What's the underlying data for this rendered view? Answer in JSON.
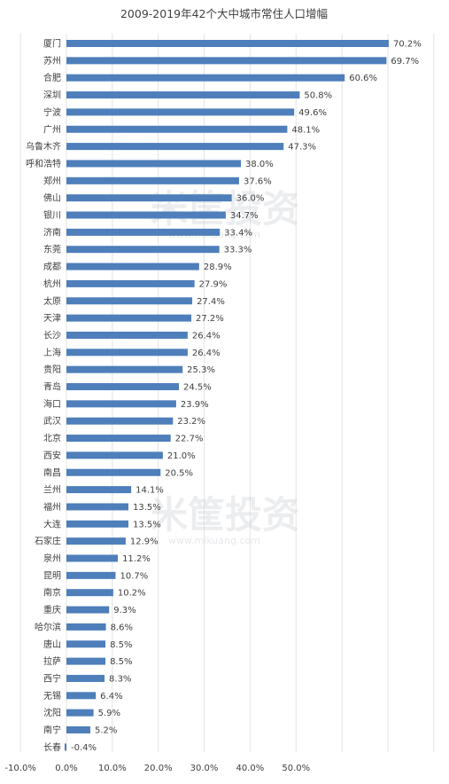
{
  "chart_data": {
    "type": "bar",
    "orientation": "horizontal",
    "title": "2009-2019年42个大中城市常住人口增幅",
    "categories": [
      "厦门",
      "苏州",
      "合肥",
      "深圳",
      "宁波",
      "广州",
      "乌鲁木齐",
      "呼和浩特",
      "郑州",
      "佛山",
      "银川",
      "济南",
      "东莞",
      "成都",
      "杭州",
      "太原",
      "天津",
      "长沙",
      "上海",
      "贵阳",
      "青岛",
      "海口",
      "武汉",
      "北京",
      "西安",
      "南昌",
      "兰州",
      "福州",
      "大连",
      "石家庄",
      "泉州",
      "昆明",
      "南京",
      "重庆",
      "哈尔滨",
      "唐山",
      "拉萨",
      "西宁",
      "无锡",
      "沈阳",
      "南宁",
      "长春"
    ],
    "values": [
      70.2,
      69.7,
      60.6,
      50.8,
      49.6,
      48.1,
      47.3,
      38.0,
      37.6,
      36.0,
      34.7,
      33.4,
      33.3,
      28.9,
      27.9,
      27.4,
      27.2,
      26.4,
      26.4,
      25.3,
      24.5,
      23.9,
      23.2,
      22.7,
      21.0,
      20.5,
      14.1,
      13.5,
      13.5,
      12.9,
      11.2,
      10.7,
      10.2,
      9.3,
      8.6,
      8.5,
      8.5,
      8.3,
      6.4,
      5.9,
      5.2,
      -0.4
    ],
    "value_labels": [
      "70.2%",
      "69.7%",
      "60.6%",
      "50.8%",
      "49.6%",
      "48.1%",
      "47.3%",
      "38.0%",
      "37.6%",
      "36.0%",
      "34.7%",
      "33.4%",
      "33.3%",
      "28.9%",
      "27.9%",
      "27.4%",
      "27.2%",
      "26.4%",
      "26.4%",
      "25.3%",
      "24.5%",
      "23.9%",
      "23.2%",
      "22.7%",
      "21.0%",
      "20.5%",
      "14.1%",
      "13.5%",
      "13.5%",
      "12.9%",
      "11.2%",
      "10.7%",
      "10.2%",
      "9.3%",
      "8.6%",
      "8.5%",
      "8.5%",
      "8.3%",
      "6.4%",
      "5.9%",
      "5.2%",
      "-0.4%"
    ],
    "xlim": [
      -10,
      80
    ],
    "xticks": [
      -10,
      0,
      10,
      20,
      30,
      40,
      50
    ],
    "xtick_labels": [
      "-10.0%",
      "0.0%",
      "10.0%",
      "20.0%",
      "30.0%",
      "40.0%",
      "50.0%"
    ],
    "grid": true,
    "bar_color": "#4e7fbb"
  },
  "watermark": {
    "text": "米筐投资",
    "sub": "www.mikuang.com"
  }
}
